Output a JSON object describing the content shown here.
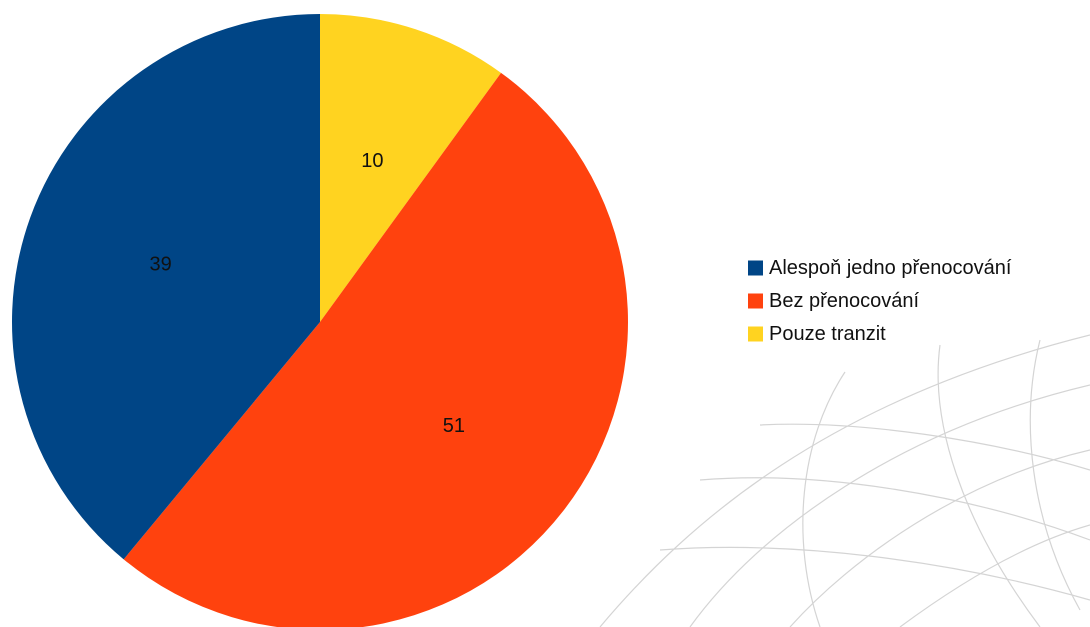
{
  "chart_data": {
    "type": "pie",
    "title": "",
    "slices": [
      {
        "label": "Pouze tranzit",
        "value": 10,
        "color": "#FFD320"
      },
      {
        "label": "Bez přenocování",
        "value": 51,
        "color": "#FF420E"
      },
      {
        "label": "Alespoň jedno přenocování",
        "value": 39,
        "color": "#004586"
      }
    ],
    "legend": {
      "placement": "right",
      "order": [
        "Alespoň jedno přenocování",
        "Bez přenocování",
        "Pouze tranzit"
      ]
    },
    "start_angle_deg": 0,
    "direction": "clockwise",
    "show_data_labels": true
  }
}
